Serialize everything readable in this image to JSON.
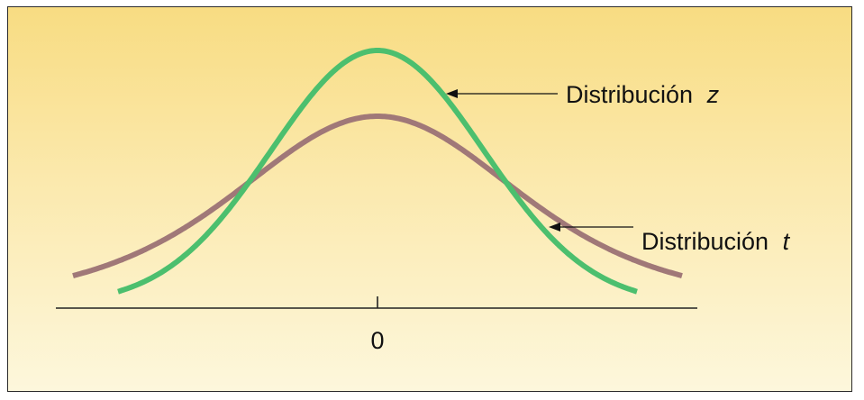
{
  "figure": {
    "colors": {
      "background_top": "#f8dc82",
      "background_bottom": "#fdf7dc",
      "z_curve": "#4cbf6e",
      "t_curve": "#a07878",
      "axis": "#222222"
    }
  },
  "labels": {
    "z_text": "Distribución",
    "z_var": "z",
    "t_text": "Distribución",
    "t_var": "t"
  },
  "axis": {
    "tick_label": "0"
  },
  "chart_data": {
    "type": "line",
    "title": "",
    "xlabel": "",
    "ylabel": "",
    "x_ticks": [
      "0"
    ],
    "series": [
      {
        "name": "Distribución z",
        "distribution": "normal",
        "mean": 0
      },
      {
        "name": "Distribución t",
        "distribution": "t",
        "mean": 0
      }
    ],
    "grid": false
  }
}
